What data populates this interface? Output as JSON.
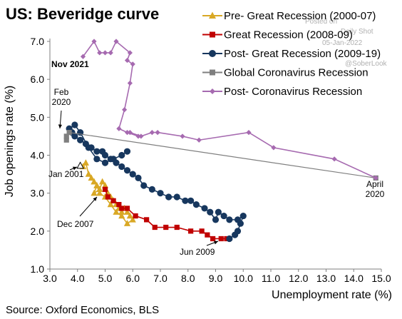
{
  "source": "Source: Oxford Economics, BLS",
  "watermark": {
    "line1": "Posted on",
    "line2": "Daily Shot",
    "line3": "05-Jan-2022",
    "line4": "@SoberLook"
  },
  "colors": {
    "pre": "#D9A825",
    "great": "#C00000",
    "post": "#17375E",
    "global": "#7F7F7F",
    "postcovid": "#A66AB0",
    "axis": "#7F7F7F",
    "grid": "#D9D9D9"
  },
  "chart_data": {
    "type": "scatter",
    "title": "US: Beveridge curve",
    "xlabel": "Unemployment rate (%)",
    "ylabel": "Job openings rate (%)",
    "xlim": [
      3.0,
      15.0
    ],
    "ylim": [
      1.0,
      7.0
    ],
    "x_ticks": [
      "3.0",
      "4.0",
      "5.0",
      "6.0",
      "7.0",
      "8.0",
      "9.0",
      "10.0",
      "11.0",
      "12.0",
      "13.0",
      "14.0",
      "15.0"
    ],
    "y_ticks": [
      "1.0",
      "2.0",
      "3.0",
      "4.0",
      "5.0",
      "6.0",
      "7.0"
    ],
    "grid": false,
    "legend_placement": "top-right",
    "series": [
      {
        "name": "Pre- Great Recession (2000-07)",
        "key": "pre",
        "marker": "triangle",
        "points": [
          [
            4.2,
            3.7
          ],
          [
            4.3,
            3.8
          ],
          [
            4.4,
            3.5
          ],
          [
            4.5,
            3.4
          ],
          [
            4.6,
            3.3
          ],
          [
            4.7,
            3.2
          ],
          [
            4.6,
            3.0
          ],
          [
            4.8,
            3.1
          ],
          [
            4.9,
            3.3
          ],
          [
            5.0,
            3.2
          ],
          [
            5.1,
            3.0
          ],
          [
            5.2,
            2.9
          ],
          [
            5.3,
            2.8
          ],
          [
            5.4,
            2.7
          ],
          [
            5.5,
            2.6
          ],
          [
            5.6,
            2.5
          ],
          [
            5.7,
            2.6
          ],
          [
            5.8,
            2.5
          ],
          [
            5.9,
            2.4
          ],
          [
            6.0,
            2.3
          ],
          [
            5.8,
            2.2
          ],
          [
            5.6,
            2.4
          ],
          [
            5.4,
            2.5
          ],
          [
            5.2,
            2.7
          ],
          [
            5.0,
            2.9
          ],
          [
            4.8,
            3.0
          ],
          [
            4.7,
            3.2
          ],
          [
            4.6,
            3.3
          ]
        ]
      },
      {
        "name": "Great Recession (2008-09)",
        "key": "great",
        "marker": "square",
        "points": [
          [
            5.0,
            3.1
          ],
          [
            5.1,
            2.9
          ],
          [
            5.3,
            2.8
          ],
          [
            5.5,
            2.7
          ],
          [
            5.6,
            2.6
          ],
          [
            5.8,
            2.6
          ],
          [
            6.1,
            2.4
          ],
          [
            6.5,
            2.3
          ],
          [
            6.8,
            2.1
          ],
          [
            7.2,
            2.1
          ],
          [
            7.6,
            2.1
          ],
          [
            8.1,
            2.0
          ],
          [
            8.5,
            2.0
          ],
          [
            8.7,
            1.9
          ],
          [
            8.9,
            1.8
          ],
          [
            9.2,
            1.8
          ],
          [
            9.4,
            1.8
          ]
        ]
      },
      {
        "name": "Post- Great Recession (2009-19)",
        "key": "post",
        "marker": "circle",
        "points": [
          [
            9.5,
            1.8
          ],
          [
            9.7,
            1.9
          ],
          [
            9.8,
            2.0
          ],
          [
            9.9,
            2.2
          ],
          [
            10.0,
            2.4
          ],
          [
            9.8,
            2.3
          ],
          [
            9.5,
            2.3
          ],
          [
            9.3,
            2.4
          ],
          [
            9.1,
            2.5
          ],
          [
            9.0,
            2.3
          ],
          [
            8.8,
            2.5
          ],
          [
            8.6,
            2.6
          ],
          [
            8.3,
            2.7
          ],
          [
            8.1,
            2.8
          ],
          [
            7.9,
            2.8
          ],
          [
            7.6,
            2.9
          ],
          [
            7.3,
            2.9
          ],
          [
            7.0,
            3.0
          ],
          [
            6.7,
            3.1
          ],
          [
            6.4,
            3.2
          ],
          [
            6.2,
            3.4
          ],
          [
            6.0,
            3.5
          ],
          [
            5.8,
            3.6
          ],
          [
            5.6,
            3.7
          ],
          [
            5.4,
            3.8
          ],
          [
            5.2,
            3.9
          ],
          [
            5.0,
            4.0
          ],
          [
            4.9,
            4.1
          ],
          [
            4.7,
            4.1
          ],
          [
            4.5,
            4.2
          ],
          [
            4.3,
            4.3
          ],
          [
            4.1,
            4.4
          ],
          [
            3.9,
            4.5
          ],
          [
            3.8,
            4.6
          ],
          [
            3.7,
            4.7
          ],
          [
            3.9,
            4.8
          ],
          [
            4.1,
            4.6
          ],
          [
            4.4,
            4.2
          ],
          [
            4.7,
            3.9
          ],
          [
            5.0,
            3.8
          ],
          [
            5.3,
            3.9
          ],
          [
            5.6,
            4.0
          ],
          [
            5.8,
            4.1
          ]
        ]
      },
      {
        "name": "Global Coronavirus Recession",
        "key": "global",
        "marker": "square",
        "points": [
          [
            3.6,
            4.4
          ],
          [
            3.6,
            4.5
          ],
          [
            3.7,
            4.6
          ],
          [
            14.8,
            3.4
          ]
        ]
      },
      {
        "name": "Post- Coronavirus Recession",
        "key": "postcovid",
        "marker": "diamond",
        "points": [
          [
            14.8,
            3.4
          ],
          [
            13.3,
            3.9
          ],
          [
            11.1,
            4.2
          ],
          [
            10.2,
            4.6
          ],
          [
            8.4,
            4.4
          ],
          [
            7.8,
            4.5
          ],
          [
            6.9,
            4.6
          ],
          [
            6.7,
            4.6
          ],
          [
            6.3,
            4.5
          ],
          [
            5.9,
            4.6
          ],
          [
            6.2,
            4.5
          ],
          [
            5.8,
            4.6
          ],
          [
            5.5,
            4.7
          ],
          [
            5.7,
            5.2
          ],
          [
            5.9,
            5.9
          ],
          [
            6.0,
            6.4
          ],
          [
            5.8,
            6.5
          ],
          [
            5.9,
            6.7
          ],
          [
            5.4,
            7.0
          ],
          [
            5.2,
            6.7
          ],
          [
            5.0,
            6.7
          ],
          [
            4.8,
            6.7
          ],
          [
            4.6,
            7.0
          ],
          [
            4.2,
            6.6
          ]
        ]
      }
    ],
    "annotations": [
      {
        "key": "nov2021",
        "lines": [
          "Nov 2021"
        ],
        "bold": true
      },
      {
        "key": "feb2020",
        "lines": [
          "Feb",
          "2020"
        ]
      },
      {
        "key": "jan2001",
        "lines": [
          "Jan 2001"
        ]
      },
      {
        "key": "dec2007",
        "lines": [
          "Dec 2007"
        ]
      },
      {
        "key": "jun2009",
        "lines": [
          "Jun 2009"
        ]
      },
      {
        "key": "apr2020",
        "lines": [
          "April",
          "2020"
        ]
      }
    ]
  }
}
